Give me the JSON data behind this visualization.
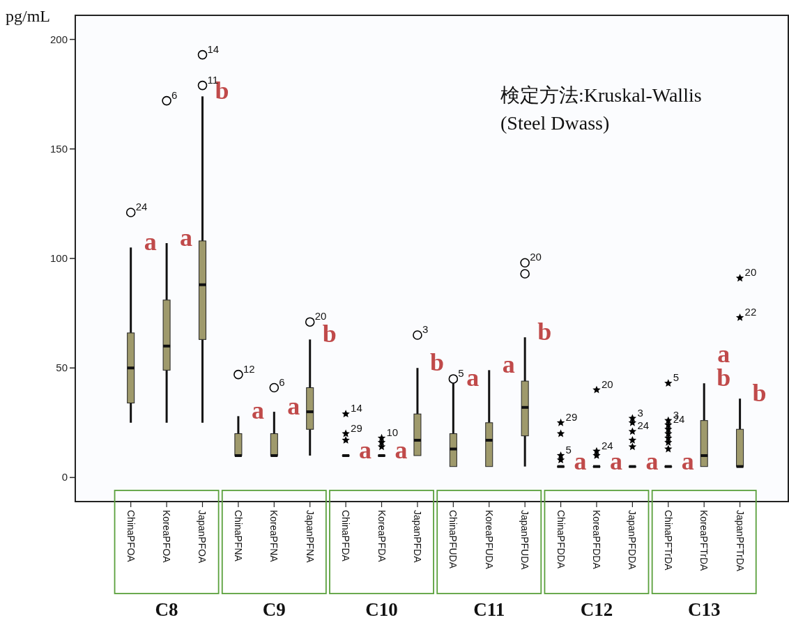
{
  "chart_data": {
    "type": "box",
    "ylabel": "pg/mL",
    "categories": [
      "ChinaPFOA",
      "KoreaPFOA",
      "JapanPFOA",
      "ChinaPFNA",
      "KoreaPFNA",
      "JapanPFNA",
      "ChinaPFDA",
      "KoreaPFDA",
      "JapanPFDA",
      "ChinaPFUDA",
      "KoreaPFUDA",
      "JapanPFUDA",
      "ChinaPFDDA",
      "KoreaPFDDA",
      "JapanPFDDA",
      "ChinaPFTrDA",
      "KoreaPFTrDA",
      "JapanPFTrDA"
    ],
    "ylim": [
      -11,
      211
    ],
    "yticks": [
      0,
      50,
      100,
      150,
      200
    ],
    "series": [
      {
        "type": "box",
        "color": "#9f9a6c",
        "boxes": [
          {
            "low": 25,
            "q1": 34,
            "median": 50,
            "q3": 66,
            "high": 105
          },
          {
            "low": 25,
            "q1": 49,
            "median": 60,
            "q3": 81,
            "high": 107
          },
          {
            "low": 25,
            "q1": 63,
            "median": 88,
            "q3": 108,
            "high": 174
          },
          {
            "low": 10,
            "q1": 10,
            "median": 10,
            "q3": 20,
            "high": 28
          },
          {
            "low": 10,
            "q1": 10,
            "median": 10,
            "q3": 20,
            "high": 30
          },
          {
            "low": 10,
            "q1": 22,
            "median": 30,
            "q3": 41,
            "high": 63
          },
          {
            "low": 10,
            "q1": 10,
            "median": 10,
            "q3": 10,
            "high": 10
          },
          {
            "low": 10,
            "q1": 10,
            "median": 10,
            "q3": 10,
            "high": 10
          },
          {
            "low": 10,
            "q1": 10,
            "median": 17,
            "q3": 29,
            "high": 50
          },
          {
            "low": 5,
            "q1": 5,
            "median": 13,
            "q3": 20,
            "high": 43
          },
          {
            "low": 5,
            "q1": 5,
            "median": 17,
            "q3": 25,
            "high": 49
          },
          {
            "low": 5,
            "q1": 19,
            "median": 32,
            "q3": 44,
            "high": 64
          },
          {
            "low": 5,
            "q1": 5,
            "median": 5,
            "q3": 5,
            "high": 5
          },
          {
            "low": 5,
            "q1": 5,
            "median": 5,
            "q3": 5,
            "high": 5
          },
          {
            "low": 5,
            "q1": 5,
            "median": 5,
            "q3": 5,
            "high": 5
          },
          {
            "low": 5,
            "q1": 5,
            "median": 5,
            "q3": 5,
            "high": 5
          },
          {
            "low": 5,
            "q1": 5,
            "median": 10,
            "q3": 26,
            "high": 43
          },
          {
            "low": 5,
            "q1": 5,
            "median": 5,
            "q3": 22,
            "high": 36
          }
        ]
      },
      {
        "type": "scatter",
        "marker": "circle",
        "color": "#000000",
        "x": [
          "ChinaPFOA",
          "KoreaPFOA",
          "JapanPFOA",
          "JapanPFOA",
          "ChinaPFNA",
          "KoreaPFNA",
          "JapanPFNA",
          "JapanPFDA",
          "ChinaPFUDA",
          "JapanPFUDA",
          "JapanPFUDA"
        ],
        "values": [
          121,
          172,
          193,
          179,
          47,
          41,
          71,
          65,
          45,
          98,
          93
        ]
      },
      {
        "type": "scatter",
        "marker": "star",
        "color": "#000000",
        "x": [
          "ChinaPFDA",
          "ChinaPFDA",
          "ChinaPFDA",
          "KoreaPFDA",
          "KoreaPFDA",
          "KoreaPFDA",
          "ChinaPFDDA",
          "ChinaPFDDA",
          "ChinaPFDDA",
          "ChinaPFDDA",
          "KoreaPFDDA",
          "KoreaPFDDA",
          "KoreaPFDDA",
          "JapanPFDDA",
          "JapanPFDDA",
          "JapanPFDDA",
          "JapanPFDDA",
          "JapanPFDDA",
          "ChinaPFTrDA",
          "ChinaPFTrDA",
          "ChinaPFTrDA",
          "ChinaPFTrDA",
          "ChinaPFTrDA",
          "ChinaPFTrDA",
          "ChinaPFTrDA",
          "ChinaPFTrDA",
          "JapanPFTrDA",
          "JapanPFTrDA"
        ],
        "values": [
          29,
          20,
          17,
          18,
          16,
          14,
          25,
          20,
          10,
          8,
          40,
          12,
          10,
          27,
          25,
          21,
          17,
          14,
          43,
          26,
          24,
          22,
          20,
          18,
          16,
          13,
          91,
          73
        ]
      }
    ],
    "annotations": [
      "検定方法:Kruskal-Wallis\n(Steel Dwass)",
      "C8",
      "C9",
      "C10",
      "C11",
      "C12",
      "C13",
      {
        "text": "a",
        "x": "ChinaPFOA",
        "y": 105
      },
      {
        "text": "a",
        "x": "KoreaPFOA",
        "y": 107
      },
      {
        "text": "b",
        "x": "JapanPFOA",
        "y": 174
      },
      {
        "text": "a",
        "x": "ChinaPFNA",
        "y": 28
      },
      {
        "text": "a",
        "x": "KoreaPFNA",
        "y": 30
      },
      {
        "text": "b",
        "x": "JapanPFNA",
        "y": 63
      },
      {
        "text": "a",
        "x": "ChinaPFDA",
        "y": 10
      },
      {
        "text": "a",
        "x": "KoreaPFDA",
        "y": 10
      },
      {
        "text": "b",
        "x": "JapanPFDA",
        "y": 50
      },
      {
        "text": "a",
        "x": "ChinaPFUDA",
        "y": 43
      },
      {
        "text": "a",
        "x": "KoreaPFUDA",
        "y": 49
      },
      {
        "text": "b",
        "x": "JapanPFUDA",
        "y": 64
      },
      {
        "text": "a",
        "x": "ChinaPFDDA",
        "y": 5
      },
      {
        "text": "a",
        "x": "KoreaPFDDA",
        "y": 5
      },
      {
        "text": "a",
        "x": "JapanPFDDA",
        "y": 5
      },
      {
        "text": "a",
        "x": "ChinaPFTrDA",
        "y": 5
      },
      {
        "text": "b",
        "x": "KoreaPFTrDA",
        "y": 43
      },
      {
        "text": "a",
        "x": "KoreaPFTrDA",
        "y": 43
      },
      {
        "text": "b",
        "x": "JapanPFTrDA",
        "y": 36
      },
      {
        "text": "24",
        "x": "ChinaPFOA",
        "y": 121
      },
      {
        "text": "6",
        "x": "KoreaPFOA",
        "y": 172
      },
      {
        "text": "14",
        "x": "JapanPFOA",
        "y": 193
      },
      {
        "text": "11",
        "x": "JapanPFOA",
        "y": 179
      },
      {
        "text": "12",
        "x": "ChinaPFNA",
        "y": 47
      },
      {
        "text": "6",
        "x": "KoreaPFNA",
        "y": 41
      },
      {
        "text": "20",
        "x": "JapanPFNA",
        "y": 71
      },
      {
        "text": "3",
        "x": "JapanPFDA",
        "y": 65
      },
      {
        "text": "5",
        "x": "ChinaPFUDA",
        "y": 45
      },
      {
        "text": "20",
        "x": "JapanPFUDA",
        "y": 98
      },
      {
        "text": "14",
        "x": "ChinaPFDA",
        "y": 29
      },
      {
        "text": "29",
        "x": "ChinaPFDA",
        "y": 20
      },
      {
        "text": "10",
        "x": "KoreaPFDA",
        "y": 18
      },
      {
        "text": "29",
        "x": "ChinaPFDDA",
        "y": 25
      },
      {
        "text": "5",
        "x": "ChinaPFDDA",
        "y": 10
      },
      {
        "text": "20",
        "x": "KoreaPFDDA",
        "y": 40
      },
      {
        "text": "24",
        "x": "KoreaPFDDA",
        "y": 12
      },
      {
        "text": "3",
        "x": "JapanPFDDA",
        "y": 27
      },
      {
        "text": "24",
        "x": "JapanPFDDA",
        "y": 21
      },
      {
        "text": "5",
        "x": "ChinaPFTrDA",
        "y": 43
      },
      {
        "text": "3",
        "x": "ChinaPFTrDA",
        "y": 26
      },
      {
        "text": "24",
        "x": "ChinaPFTrDA",
        "y": 24
      },
      {
        "text": "20",
        "x": "JapanPFTrDA",
        "y": 91
      },
      {
        "text": "22",
        "x": "JapanPFTrDA",
        "y": 73
      }
    ]
  }
}
